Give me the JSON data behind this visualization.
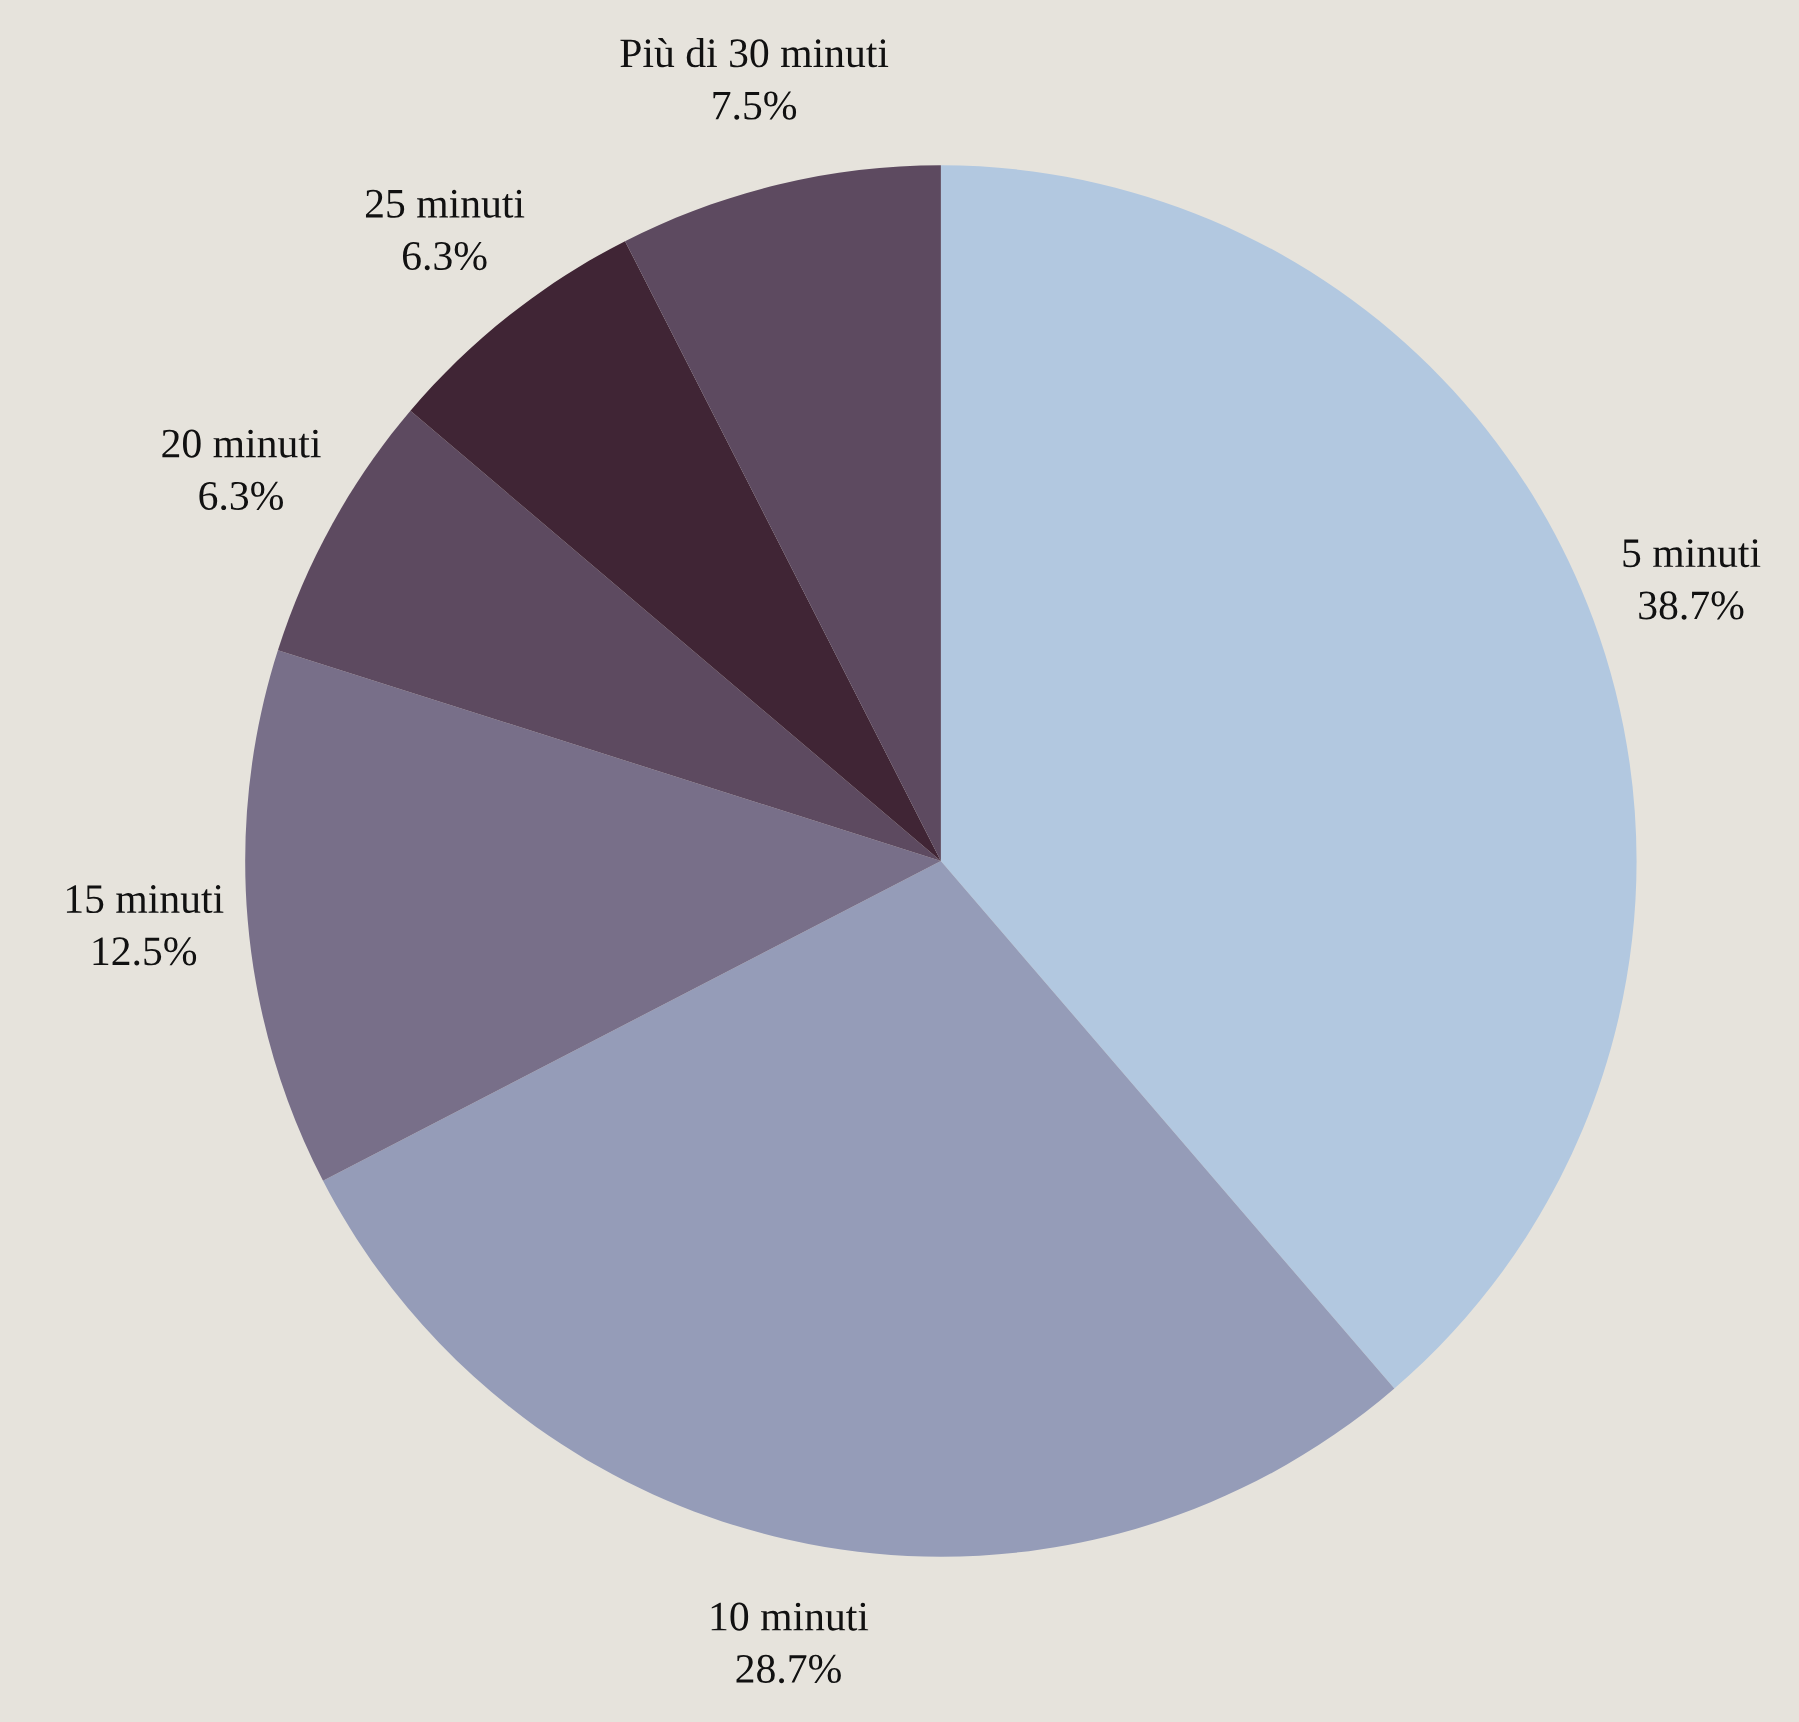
{
  "chart_data": {
    "type": "pie",
    "categories": [
      "5 minuti",
      "10 minuti",
      "15 minuti",
      "20 minuti",
      "25 minuti",
      "Più di 30 minuti"
    ],
    "values": [
      38.7,
      28.7,
      12.5,
      6.3,
      6.3,
      7.5
    ],
    "value_labels": [
      "38.7%",
      "28.7%",
      "12.5%",
      "6.3%",
      "6.3%",
      "7.5%"
    ],
    "colors": [
      "#b2c8e0",
      "#959cb8",
      "#786f89",
      "#5d4a60",
      "#402535",
      "#5d4a60"
    ]
  }
}
